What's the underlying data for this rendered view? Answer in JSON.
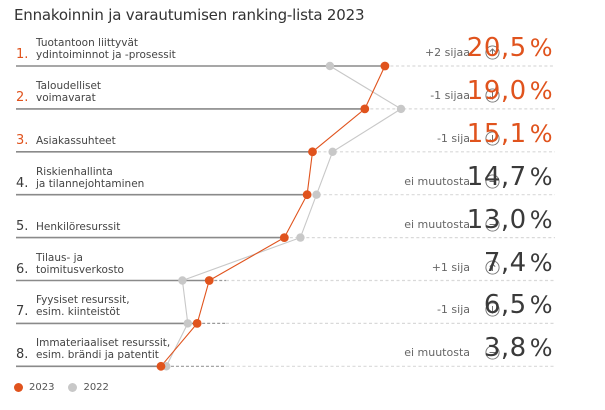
{
  "title": "Ennakoinnin ja varautumisen ranking-lista 2023",
  "colors": {
    "series_2023": "#e0531d",
    "series_2022": "#c8c8c8",
    "top_rank_text": "#e0531d",
    "other_rank_text": "#3a3a3a",
    "row_line": "#8a8a8a",
    "dash_light": "#d9d9d9"
  },
  "legend": [
    {
      "label": "2023",
      "color": "#e0531d"
    },
    {
      "label": "2022",
      "color": "#c8c8c8"
    }
  ],
  "chart_data": {
    "type": "line",
    "title": "Ennakoinnin ja varautumisen ranking-lista 2023",
    "orientation": "horizontal-ranking",
    "unit": "%",
    "xlim": [
      0,
      25
    ],
    "grid": false,
    "legend_position": "bottom-left",
    "categories": [
      "Tuotantoon liittyvät ydintoiminnot ja -prosessit",
      "Taloudelliset voimavarat",
      "Asiakassuhteet",
      "Riskienhallinta ja tilannejohtaminen",
      "Henkilöresurssit",
      "Tilaus- ja toimitusverkosto",
      "Fyysiset resurssit, esim. kiinteistöt",
      "Immateriaaliset resurssit, esim. brändi ja patentit"
    ],
    "series": [
      {
        "name": "2023",
        "values": [
          20.5,
          19.0,
          15.1,
          14.7,
          13.0,
          7.4,
          6.5,
          3.8
        ]
      },
      {
        "name": "2022",
        "values": [
          16.4,
          21.7,
          16.6,
          15.4,
          14.2,
          5.4,
          5.8,
          4.2
        ]
      }
    ]
  },
  "rows": [
    {
      "rank": "1.",
      "label_lines": [
        "Tuotantoon liittyvät",
        "ydintoiminnot ja -prosessit"
      ],
      "change": "+2 sijaa",
      "change_dir": "up",
      "value": "20,5",
      "pct": "%",
      "highlight": true
    },
    {
      "rank": "2.",
      "label_lines": [
        "Taloudelliset",
        "voimavarat"
      ],
      "change": "-1 sijaa",
      "change_dir": "down",
      "value": "19,0",
      "pct": "%",
      "highlight": true
    },
    {
      "rank": "3.",
      "label_lines": [
        "Asiakassuhteet"
      ],
      "change": "-1 sija",
      "change_dir": "down",
      "value": "15,1",
      "pct": "%",
      "highlight": true
    },
    {
      "rank": "4.",
      "label_lines": [
        "Riskienhallinta",
        "ja tilannejohtaminen"
      ],
      "change": "ei muutosta",
      "change_dir": "none",
      "value": "14,7",
      "pct": "%",
      "highlight": false
    },
    {
      "rank": "5.",
      "label_lines": [
        "Henkilöresurssit"
      ],
      "change": "ei muutosta",
      "change_dir": "none",
      "value": "13,0",
      "pct": "%",
      "highlight": false
    },
    {
      "rank": "6.",
      "label_lines": [
        "Tilaus- ja",
        "toimitusverkosto"
      ],
      "change": "+1 sija",
      "change_dir": "up",
      "value": "7,4",
      "pct": "%",
      "highlight": false
    },
    {
      "rank": "7.",
      "label_lines": [
        "Fyysiset resurssit,",
        "esim. kiinteistöt"
      ],
      "change": "-1 sija",
      "change_dir": "down",
      "value": "6,5",
      "pct": "%",
      "highlight": false
    },
    {
      "rank": "8.",
      "label_lines": [
        "Immateriaaliset resurssit,",
        "esim. brändi ja patentit"
      ],
      "change": "ei muutosta",
      "change_dir": "none",
      "value": "3,8",
      "pct": "%",
      "highlight": false
    }
  ],
  "icons": {
    "up": "arrow-up-circle-icon",
    "down": "arrow-down-circle-icon",
    "none": "minus-circle-icon"
  }
}
